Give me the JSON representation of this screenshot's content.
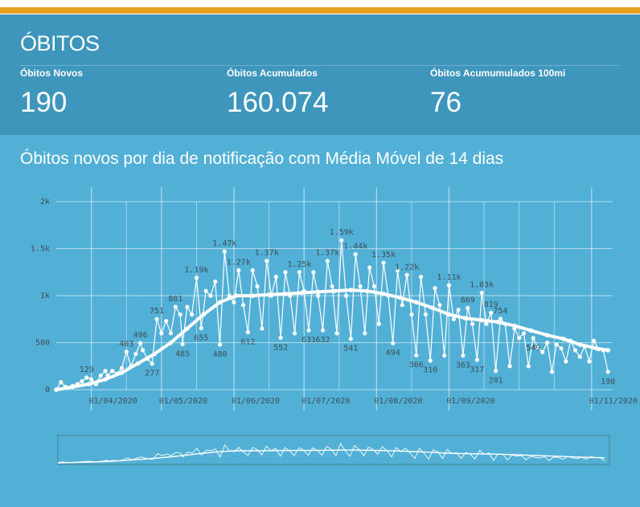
{
  "section_title": "ÓBITOS",
  "stats": [
    {
      "label": "Óbitos Novos",
      "value": "190"
    },
    {
      "label": "Óbitos Acumulados",
      "value": "160.074"
    },
    {
      "label": "Óbitos Acumumulados 100mi",
      "value": "76"
    }
  ],
  "chart_title": "Óbitos novos por dia de notificação com Média Móvel de 14 dias",
  "colors": {
    "accent_stripe": "#e8a020",
    "stats_bg": "#3e96bd",
    "chart_bg": "#52b0d6",
    "series": "#ffffff",
    "tick_text": "#3d4f57"
  },
  "chart_data": {
    "type": "line",
    "grid": true,
    "legend": "none",
    "ylim": [
      0,
      2000
    ],
    "yticks": [
      {
        "value": 0,
        "label": "0"
      },
      {
        "value": 500,
        "label": "500"
      },
      {
        "value": 1000,
        "label": "1k"
      },
      {
        "value": 1500,
        "label": "1.5k"
      },
      {
        "value": 2000,
        "label": "2k"
      }
    ],
    "xlim": [
      "2020-03-17",
      "2020-11-10"
    ],
    "xticks": [
      {
        "value": "2020-04-01",
        "label": "01/04/2020"
      },
      {
        "value": "2020-05-01",
        "label": "01/05/2020"
      },
      {
        "value": "2020-06-01",
        "label": "01/06/2020"
      },
      {
        "value": "2020-07-01",
        "label": "01/07/2020"
      },
      {
        "value": "2020-08-01",
        "label": "01/08/2020"
      },
      {
        "value": "2020-09-01",
        "label": "01/09/2020"
      },
      {
        "value": "2020-11-01",
        "label": "01/11/2020"
      }
    ],
    "minor_xticks": [
      "2020-04-16",
      "2020-05-16",
      "2020-06-16",
      "2020-07-16",
      "2020-08-16",
      "2020-09-16",
      "2020-10-01",
      "2020-10-16"
    ],
    "series": [
      {
        "role": "daily",
        "points": [
          [
            "2020-03-17",
            1
          ],
          [
            "2020-03-19",
            80
          ],
          [
            "2020-03-21",
            30
          ],
          [
            "2020-03-24",
            40
          ],
          [
            "2020-03-26",
            60
          ],
          [
            "2020-03-28",
            90
          ],
          [
            "2020-03-30",
            129
          ],
          [
            "2020-04-01",
            110
          ],
          [
            "2020-04-03",
            60
          ],
          [
            "2020-04-05",
            150
          ],
          [
            "2020-04-07",
            200
          ],
          [
            "2020-04-08",
            150
          ],
          [
            "2020-04-10",
            200
          ],
          [
            "2020-04-12",
            170
          ],
          [
            "2020-04-14",
            230
          ],
          [
            "2020-04-16",
            403
          ],
          [
            "2020-04-18",
            250
          ],
          [
            "2020-04-20",
            380
          ],
          [
            "2020-04-22",
            496
          ],
          [
            "2020-04-23",
            420
          ],
          [
            "2020-04-25",
            330
          ],
          [
            "2020-04-27",
            277
          ],
          [
            "2020-04-29",
            751
          ],
          [
            "2020-05-01",
            600
          ],
          [
            "2020-05-03",
            730
          ],
          [
            "2020-05-05",
            600
          ],
          [
            "2020-05-07",
            881
          ],
          [
            "2020-05-09",
            800
          ],
          [
            "2020-05-10",
            485
          ],
          [
            "2020-05-12",
            880
          ],
          [
            "2020-05-14",
            800
          ],
          [
            "2020-05-16",
            1190
          ],
          [
            "2020-05-18",
            655
          ],
          [
            "2020-05-20",
            1050
          ],
          [
            "2020-05-22",
            1000
          ],
          [
            "2020-05-24",
            1150
          ],
          [
            "2020-05-26",
            480
          ],
          [
            "2020-05-28",
            1470
          ],
          [
            "2020-05-30",
            1000
          ],
          [
            "2020-06-01",
            930
          ],
          [
            "2020-06-03",
            1270
          ],
          [
            "2020-06-05",
            900
          ],
          [
            "2020-06-07",
            612
          ],
          [
            "2020-06-09",
            1270
          ],
          [
            "2020-06-11",
            1100
          ],
          [
            "2020-06-13",
            650
          ],
          [
            "2020-06-15",
            1370
          ],
          [
            "2020-06-17",
            1000
          ],
          [
            "2020-06-19",
            1200
          ],
          [
            "2020-06-21",
            552
          ],
          [
            "2020-06-23",
            1250
          ],
          [
            "2020-06-25",
            1000
          ],
          [
            "2020-06-27",
            600
          ],
          [
            "2020-06-29",
            1250
          ],
          [
            "2020-07-01",
            1050
          ],
          [
            "2020-07-03",
            631
          ],
          [
            "2020-07-05",
            1250
          ],
          [
            "2020-07-07",
            1000
          ],
          [
            "2020-07-09",
            632
          ],
          [
            "2020-07-11",
            1370
          ],
          [
            "2020-07-13",
            1100
          ],
          [
            "2020-07-15",
            600
          ],
          [
            "2020-07-17",
            1590
          ],
          [
            "2020-07-19",
            1000
          ],
          [
            "2020-07-21",
            541
          ],
          [
            "2020-07-23",
            1440
          ],
          [
            "2020-07-25",
            1100
          ],
          [
            "2020-07-27",
            600
          ],
          [
            "2020-07-29",
            1300
          ],
          [
            "2020-07-31",
            1100
          ],
          [
            "2020-08-02",
            700
          ],
          [
            "2020-08-04",
            1350
          ],
          [
            "2020-08-06",
            1000
          ],
          [
            "2020-08-08",
            494
          ],
          [
            "2020-08-10",
            1270
          ],
          [
            "2020-08-12",
            900
          ],
          [
            "2020-08-14",
            1220
          ],
          [
            "2020-08-16",
            800
          ],
          [
            "2020-08-18",
            366
          ],
          [
            "2020-08-20",
            1200
          ],
          [
            "2020-08-22",
            800
          ],
          [
            "2020-08-24",
            310
          ],
          [
            "2020-08-26",
            1080
          ],
          [
            "2020-08-28",
            900
          ],
          [
            "2020-08-30",
            363
          ],
          [
            "2020-09-01",
            1110
          ],
          [
            "2020-09-03",
            750
          ],
          [
            "2020-09-05",
            850
          ],
          [
            "2020-09-07",
            363
          ],
          [
            "2020-09-09",
            869
          ],
          [
            "2020-09-11",
            700
          ],
          [
            "2020-09-13",
            317
          ],
          [
            "2020-09-15",
            1030
          ],
          [
            "2020-09-17",
            700
          ],
          [
            "2020-09-19",
            819
          ],
          [
            "2020-09-21",
            201
          ],
          [
            "2020-09-23",
            754
          ],
          [
            "2020-09-25",
            700
          ],
          [
            "2020-09-27",
            250
          ],
          [
            "2020-09-29",
            650
          ],
          [
            "2020-10-01",
            550
          ],
          [
            "2020-10-03",
            600
          ],
          [
            "2020-10-05",
            250
          ],
          [
            "2020-10-07",
            549
          ],
          [
            "2020-10-09",
            450
          ],
          [
            "2020-10-11",
            400
          ],
          [
            "2020-10-13",
            500
          ],
          [
            "2020-10-15",
            190
          ],
          [
            "2020-10-17",
            480
          ],
          [
            "2020-10-19",
            440
          ],
          [
            "2020-10-21",
            300
          ],
          [
            "2020-10-23",
            520
          ],
          [
            "2020-10-25",
            420
          ],
          [
            "2020-10-27",
            350
          ],
          [
            "2020-10-29",
            460
          ],
          [
            "2020-10-31",
            300
          ],
          [
            "2020-11-02",
            520
          ],
          [
            "2020-11-04",
            430
          ],
          [
            "2020-11-06",
            420
          ],
          [
            "2020-11-08",
            190
          ]
        ]
      },
      {
        "role": "moving_average_14d",
        "points": [
          [
            "2020-03-17",
            0
          ],
          [
            "2020-03-24",
            30
          ],
          [
            "2020-03-31",
            60
          ],
          [
            "2020-04-07",
            110
          ],
          [
            "2020-04-14",
            180
          ],
          [
            "2020-04-21",
            280
          ],
          [
            "2020-04-28",
            380
          ],
          [
            "2020-05-05",
            500
          ],
          [
            "2020-05-12",
            650
          ],
          [
            "2020-05-19",
            800
          ],
          [
            "2020-05-26",
            930
          ],
          [
            "2020-06-02",
            1000
          ],
          [
            "2020-06-09",
            1000
          ],
          [
            "2020-06-16",
            1010
          ],
          [
            "2020-06-23",
            1020
          ],
          [
            "2020-06-30",
            1030
          ],
          [
            "2020-07-07",
            1040
          ],
          [
            "2020-07-14",
            1050
          ],
          [
            "2020-07-21",
            1060
          ],
          [
            "2020-07-28",
            1050
          ],
          [
            "2020-08-04",
            1020
          ],
          [
            "2020-08-11",
            980
          ],
          [
            "2020-08-18",
            930
          ],
          [
            "2020-08-25",
            870
          ],
          [
            "2020-09-01",
            800
          ],
          [
            "2020-09-08",
            760
          ],
          [
            "2020-09-15",
            740
          ],
          [
            "2020-09-22",
            720
          ],
          [
            "2020-09-29",
            680
          ],
          [
            "2020-10-06",
            630
          ],
          [
            "2020-10-13",
            580
          ],
          [
            "2020-10-20",
            540
          ],
          [
            "2020-10-27",
            480
          ],
          [
            "2020-11-03",
            440
          ],
          [
            "2020-11-08",
            420
          ]
        ]
      }
    ],
    "data_labels": [
      {
        "x": "2020-03-30",
        "value": 129,
        "label": "129"
      },
      {
        "x": "2020-04-16",
        "value": 403,
        "label": "403"
      },
      {
        "x": "2020-04-22",
        "value": 496,
        "label": "496"
      },
      {
        "x": "2020-04-27",
        "value": 277,
        "label": "277"
      },
      {
        "x": "2020-04-29",
        "value": 751,
        "label": "751"
      },
      {
        "x": "2020-05-07",
        "value": 881,
        "label": "881"
      },
      {
        "x": "2020-05-10",
        "value": 485,
        "label": "485"
      },
      {
        "x": "2020-05-16",
        "value": 1190,
        "label": "1.19k"
      },
      {
        "x": "2020-05-18",
        "value": 655,
        "label": "655"
      },
      {
        "x": "2020-05-26",
        "value": 480,
        "label": "480"
      },
      {
        "x": "2020-05-28",
        "value": 1470,
        "label": "1.47k"
      },
      {
        "x": "2020-06-03",
        "value": 1270,
        "label": "1.27k"
      },
      {
        "x": "2020-06-07",
        "value": 612,
        "label": "612"
      },
      {
        "x": "2020-06-15",
        "value": 1370,
        "label": "1.37k"
      },
      {
        "x": "2020-06-21",
        "value": 552,
        "label": "552"
      },
      {
        "x": "2020-06-29",
        "value": 1250,
        "label": "1.25k"
      },
      {
        "x": "2020-07-03",
        "value": 631,
        "label": "631"
      },
      {
        "x": "2020-07-09",
        "value": 632,
        "label": "632"
      },
      {
        "x": "2020-07-11",
        "value": 1370,
        "label": "1.37k"
      },
      {
        "x": "2020-07-17",
        "value": 1590,
        "label": "1.59k"
      },
      {
        "x": "2020-07-21",
        "value": 541,
        "label": "541"
      },
      {
        "x": "2020-07-23",
        "value": 1440,
        "label": "1.44k"
      },
      {
        "x": "2020-08-04",
        "value": 1350,
        "label": "1.35k"
      },
      {
        "x": "2020-08-08",
        "value": 494,
        "label": "494"
      },
      {
        "x": "2020-08-14",
        "value": 1220,
        "label": "1.22k"
      },
      {
        "x": "2020-08-18",
        "value": 366,
        "label": "366"
      },
      {
        "x": "2020-08-24",
        "value": 310,
        "label": "310"
      },
      {
        "x": "2020-09-01",
        "value": 1110,
        "label": "1.11k"
      },
      {
        "x": "2020-09-07",
        "value": 363,
        "label": "363"
      },
      {
        "x": "2020-09-09",
        "value": 869,
        "label": "869"
      },
      {
        "x": "2020-09-13",
        "value": 317,
        "label": "317"
      },
      {
        "x": "2020-09-15",
        "value": 1030,
        "label": "1.03k"
      },
      {
        "x": "2020-09-19",
        "value": 819,
        "label": "819"
      },
      {
        "x": "2020-09-21",
        "value": 201,
        "label": "201"
      },
      {
        "x": "2020-09-23",
        "value": 754,
        "label": "754"
      },
      {
        "x": "2020-10-07",
        "value": 549,
        "label": "549"
      },
      {
        "x": "2020-11-08",
        "value": 190,
        "label": "190"
      }
    ]
  }
}
